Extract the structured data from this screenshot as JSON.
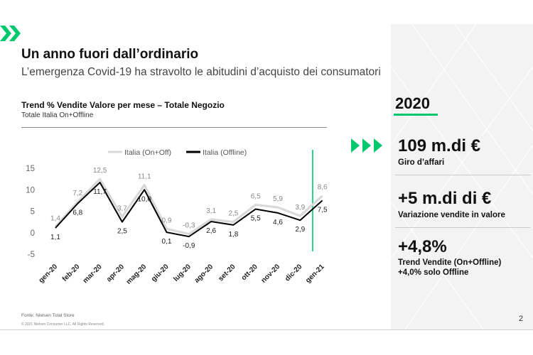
{
  "header": {
    "title": "Un anno fuori dall’ordinario",
    "subtitle": "L’emergenza Covid-19 ha stravolto le abitudini d’acquisto dei consumatori"
  },
  "colors": {
    "accent": "#00c86e",
    "series_on_off": "#d9d9d9",
    "series_offline": "#000000"
  },
  "chart_data": {
    "type": "line",
    "title": "Trend % Vendite Valore per mese – Totale Negozio",
    "subtitle": "Totale Italia On+Offline",
    "categories": [
      "gen-20",
      "feb-20",
      "mar-20",
      "apr-20",
      "mag-20",
      "giu-20",
      "lug-20",
      "ago-20",
      "set-20",
      "ott-20",
      "nov-20",
      "dic-20",
      "gen-21"
    ],
    "series": [
      {
        "name": "Italia (On+Off)",
        "values": [
          1.4,
          7.2,
          12.5,
          3.7,
          11.1,
          0.9,
          -0.3,
          3.1,
          2.5,
          6.5,
          5.9,
          3.9,
          8.6
        ],
        "labels": [
          "1,4",
          "7,2",
          "12,5",
          "3,7",
          "11,1",
          "0,9",
          "-0,3",
          "3,1",
          "2,5",
          "6,5",
          "5,9",
          "3,9",
          "8,6"
        ]
      },
      {
        "name": "Italia (Offline)",
        "values": [
          1.1,
          6.8,
          11.7,
          2.5,
          10.0,
          0.1,
          -0.9,
          2.6,
          1.8,
          5.5,
          4.6,
          2.9,
          7.5
        ],
        "labels": [
          "1,1",
          "6,8",
          "11,7",
          "2,5",
          "10,0",
          "0,1",
          "-0,9",
          "2,6",
          "1,8",
          "5,5",
          "4,6",
          "2,9",
          "7,5"
        ]
      }
    ],
    "yticks": [
      "15",
      "10",
      "5",
      "0",
      "-5"
    ],
    "ylim": [
      -5,
      15
    ],
    "legend": "top",
    "grid": false
  },
  "footer": {
    "source": "Fonte: Nielsen Total Store",
    "copyright": "© 2021 Nielsen Consumer LLC. All Rights Reserved.",
    "page_number": "2"
  },
  "right_panel": {
    "year": "2020",
    "stats": [
      {
        "value": "109 m.di €",
        "label": "Giro d’affari"
      },
      {
        "value": "+5 m.di di €",
        "label": "Variazione vendite in valore"
      },
      {
        "value": "+4,8%",
        "label": "Trend Vendite (On+Offline)",
        "label2": "+4,0% solo Offline"
      }
    ]
  }
}
